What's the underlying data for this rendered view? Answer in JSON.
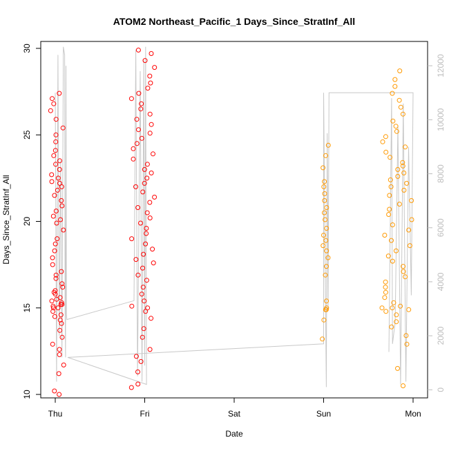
{
  "chart_data": {
    "type": "scatter",
    "title": "ATOM2 Northeast_Pacific_1 Days_Since_StratInf_All",
    "xlabel": "Date",
    "ylabel": "Days_Since_StratInf_All",
    "x_ticks": [
      "Thu",
      "Fri",
      "Sat",
      "Sun",
      "Mon"
    ],
    "y_ticks": [
      10,
      15,
      20,
      25,
      30
    ],
    "ylim": [
      9.8,
      30.4
    ],
    "y2_ticks": [
      0,
      2000,
      4000,
      6000,
      8000,
      10000,
      12000
    ],
    "y2lim": [
      -300,
      12900
    ],
    "grid": false,
    "legend": "none",
    "colors": {
      "thu_fri_points": "#ff0000",
      "sun_mon_points": "#ff9900",
      "secondary_line": "#c8c8c8",
      "right_axis": "#bdbdbd"
    },
    "point_series": [
      {
        "color_key": "thu_fri_points",
        "clusters": [
          {
            "day": 0.02,
            "spread": 0.075,
            "y_values": [
              10.0,
              10.2,
              11.2,
              11.7,
              12.3,
              12.6,
              12.9,
              13.3,
              13.7,
              14.1,
              14.3,
              14.5,
              14.6,
              14.8,
              15.0,
              15.0,
              15.1,
              15.2,
              15.2,
              15.3,
              15.4,
              15.5,
              15.6,
              15.8,
              15.9,
              16.0,
              16.2,
              16.4,
              16.7,
              16.9,
              17.1,
              17.5,
              17.9,
              18.3,
              18.7,
              19.0,
              19.5,
              19.9,
              20.1,
              20.3,
              20.6,
              20.9,
              21.2,
              21.5,
              21.8,
              22.0,
              22.2,
              22.3,
              22.5,
              22.7,
              23.0,
              23.3,
              23.5,
              23.8,
              24.1,
              24.6,
              25.0,
              25.4,
              25.9,
              26.4,
              26.8,
              27.1,
              27.4
            ]
          },
          {
            "day": 0.98,
            "spread": 0.13,
            "y_values": [
              10.4,
              10.6,
              11.3,
              11.9,
              12.2,
              12.6,
              13.3,
              13.8,
              14.4,
              14.8,
              15.0,
              15.1,
              15.4,
              15.8,
              16.2,
              16.6,
              16.9,
              17.3,
              17.6,
              17.8,
              18.1,
              18.4,
              18.7,
              19.0,
              19.3,
              19.6,
              19.9,
              20.2,
              20.5,
              20.8,
              21.1,
              21.4,
              21.7,
              22.0,
              22.2,
              22.5,
              22.8,
              23.0,
              23.3,
              23.6,
              23.9,
              24.2,
              24.5,
              24.8,
              25.1,
              25.3,
              25.6,
              25.9,
              26.2,
              26.5,
              26.8,
              27.1,
              27.4,
              27.7,
              28.0,
              28.4,
              28.9,
              29.3,
              29.7,
              29.9
            ]
          }
        ]
      },
      {
        "color_key": "sun_mon_points",
        "clusters": [
          {
            "day": 3.02,
            "spread": 0.035,
            "y_values": [
              13.2,
              14.3,
              14.9,
              14.9,
              15.0,
              15.4,
              16.9,
              17.4,
              17.9,
              18.3,
              18.6,
              18.9,
              19.2,
              19.6,
              20.1,
              20.5,
              20.8,
              21.2,
              21.6,
              22.0,
              22.3,
              23.1,
              23.8,
              24.4
            ]
          },
          {
            "day": 3.82,
            "spread": 0.17,
            "y_values": [
              10.5,
              11.5,
              12.9,
              13.4,
              13.9,
              14.2,
              14.6,
              14.8,
              14.9,
              15.0,
              15.0,
              15.1,
              15.3,
              15.6,
              15.9,
              16.2,
              16.5,
              16.8,
              17.1,
              17.4,
              17.7,
              18.0,
              18.3,
              18.6,
              18.9,
              19.2,
              19.5,
              19.8,
              20.1,
              20.4,
              20.7,
              21.0,
              21.2,
              21.5,
              21.8,
              22.0,
              22.2,
              22.4,
              22.6,
              22.8,
              23.0,
              23.2,
              23.4,
              23.7,
              24.0,
              24.3,
              24.6,
              24.9,
              25.2,
              25.5,
              25.8,
              26.2,
              26.6,
              27.0,
              27.4,
              27.8,
              28.2,
              28.7
            ]
          }
        ]
      }
    ],
    "secondary_line": {
      "axis": "right",
      "points": [
        {
          "day": 0.0,
          "y2": 11000
        },
        {
          "day": 0.015,
          "y2": 300
        },
        {
          "day": 0.03,
          "y2": 12400
        },
        {
          "day": 0.045,
          "y2": 2000
        },
        {
          "day": 0.06,
          "y2": 8500
        },
        {
          "day": 0.075,
          "y2": 1200
        },
        {
          "day": 0.09,
          "y2": 12700
        },
        {
          "day": 0.105,
          "y2": 12400
        },
        {
          "day": 0.11,
          "y2": 3000
        },
        {
          "day": 0.115,
          "y2": 1200
        },
        {
          "day": 0.12,
          "y2": 12000
        },
        {
          "day": 0.125,
          "y2": 2800
        },
        {
          "day": 0.13,
          "y2": 2600
        },
        {
          "day": 0.88,
          "y2": 3300
        },
        {
          "day": 0.9,
          "y2": 12600
        },
        {
          "day": 0.92,
          "y2": 500
        },
        {
          "day": 0.95,
          "y2": 11800
        },
        {
          "day": 0.97,
          "y2": 300
        },
        {
          "day": 0.99,
          "y2": 12200
        },
        {
          "day": 1.0,
          "y2": 900
        },
        {
          "day": 1.01,
          "y2": 12700
        },
        {
          "day": 1.02,
          "y2": 200
        },
        {
          "day": 0.14,
          "y2": 1200
        },
        {
          "day": 3.0,
          "y2": 1700
        },
        {
          "day": 3.0,
          "y2": 11000
        },
        {
          "day": 3.02,
          "y2": 3500
        },
        {
          "day": 3.03,
          "y2": 100
        },
        {
          "day": 3.04,
          "y2": 9500
        },
        {
          "day": 3.05,
          "y2": 3000
        },
        {
          "day": 3.06,
          "y2": 11000
        },
        {
          "day": 4.0,
          "y2": 11000
        },
        {
          "day": 3.98,
          "y2": 3500
        },
        {
          "day": 3.95,
          "y2": 9000
        },
        {
          "day": 3.92,
          "y2": 300
        },
        {
          "day": 3.89,
          "y2": 10600
        },
        {
          "day": 3.86,
          "y2": 200
        },
        {
          "day": 3.83,
          "y2": 9800
        },
        {
          "day": 3.8,
          "y2": 2500
        },
        {
          "day": 3.77,
          "y2": 1700
        },
        {
          "day": 3.76,
          "y2": 10800
        },
        {
          "day": 3.73,
          "y2": 1400
        }
      ]
    }
  }
}
